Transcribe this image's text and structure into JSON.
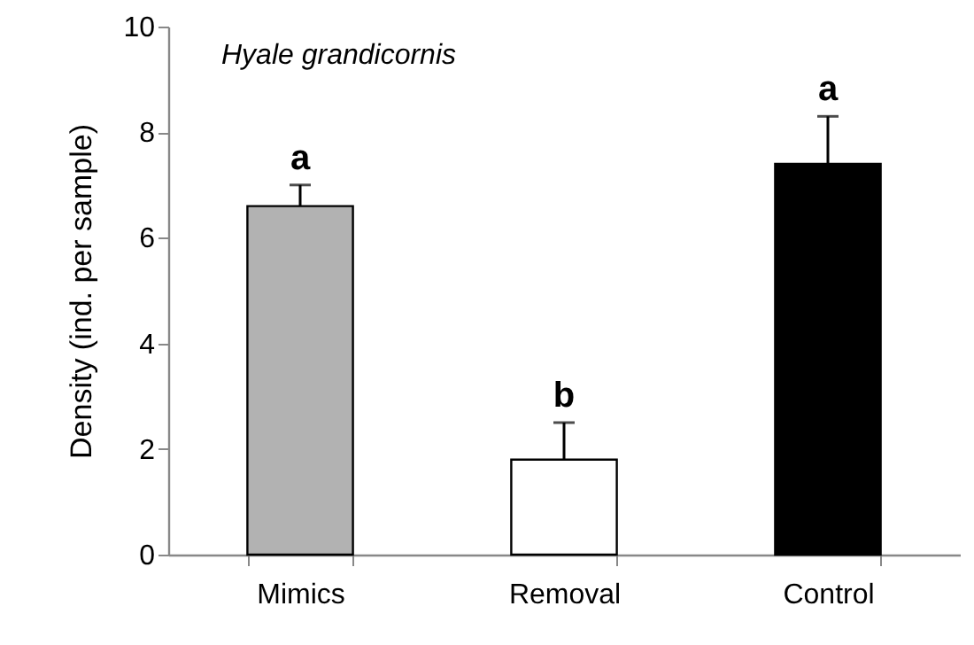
{
  "chart_data": {
    "type": "bar",
    "title": "Hyale grandicornis",
    "ylabel": "Density (ind. per sample)",
    "categories": [
      "Mimics",
      "Removal",
      "Control"
    ],
    "values": [
      6.6,
      1.8,
      7.4
    ],
    "colors": [
      "#b2b2b2",
      "#ffffff",
      "#000000"
    ],
    "errors": [
      [
        6.6,
        7.0
      ],
      [
        1.8,
        2.5
      ],
      [
        7.4,
        8.3
      ]
    ],
    "ylim": [
      0,
      10
    ],
    "yticks": [
      0,
      2,
      4,
      6,
      8,
      10
    ],
    "grid": false,
    "annotations": [
      {
        "text": "a",
        "x": "Mimics",
        "y": 7.0
      },
      {
        "text": "b",
        "x": "Removal",
        "y": 2.5
      },
      {
        "text": "a",
        "x": "Control",
        "y": 8.3
      }
    ]
  }
}
